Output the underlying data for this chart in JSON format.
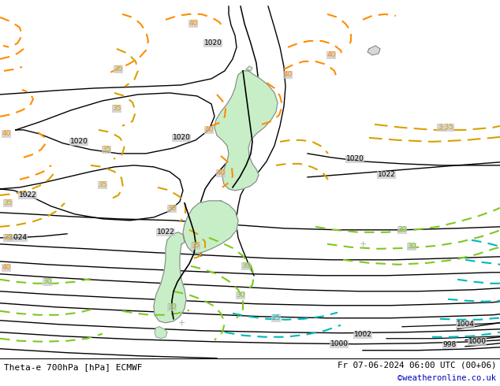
{
  "title_left": "Theta-e 700hPa [hPa] ECMWF",
  "title_right": "Fr 07-06-2024 06:00 UTC (00+06)",
  "title_right2": "©weatheronline.co.uk",
  "bg_color": "#c8c8c8",
  "land_color": "#c8eec8",
  "coast_color": "#888888",
  "figsize": [
    6.34,
    4.9
  ],
  "dpi": 100,
  "bottom_bar_color": "#ffffff"
}
